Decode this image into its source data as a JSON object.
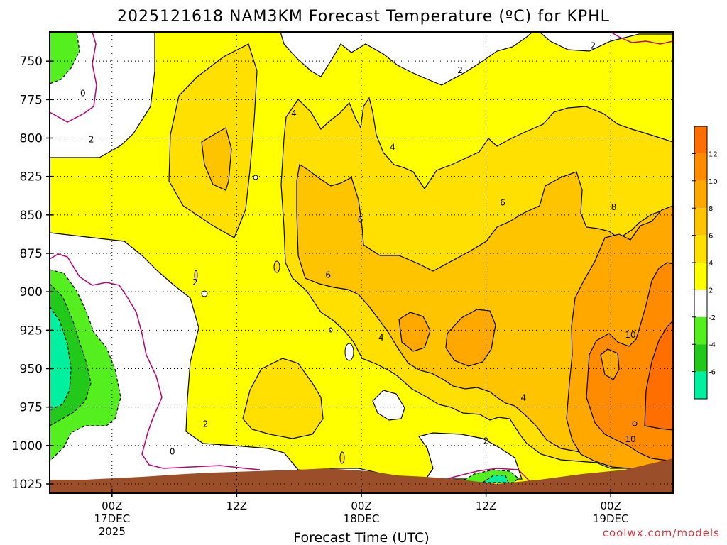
{
  "chart_data": {
    "type": "heatmap",
    "title": "2025121618 NAM3KM Forecast Temperature (ºC) for KPHL",
    "xlabel": "Forecast Time (UTC)",
    "ylabel": "",
    "credit": "coolwx.com/models",
    "y_levels": [
      750,
      775,
      800,
      825,
      850,
      875,
      900,
      925,
      950,
      975,
      1000,
      1025
    ],
    "y_tick_labels": [
      "750",
      "775",
      "800",
      "825",
      "850",
      "875",
      "900",
      "925",
      "950",
      "975",
      "1000",
      "1025"
    ],
    "ylim": [
      731,
      1031
    ],
    "x_range_hours": [
      -6,
      54
    ],
    "x_ticks": [
      {
        "hour": 0,
        "lines": [
          "00Z",
          "17DEC",
          "2025"
        ]
      },
      {
        "hour": 12,
        "lines": [
          "12Z"
        ]
      },
      {
        "hour": 24,
        "lines": [
          "00Z",
          "18DEC"
        ]
      },
      {
        "hour": 36,
        "lines": [
          "12Z"
        ]
      },
      {
        "hour": 48,
        "lines": [
          "00Z",
          "19DEC"
        ]
      }
    ],
    "colorbar": {
      "levels": [
        -8,
        -6,
        -4,
        -2,
        2,
        4,
        6,
        8,
        10,
        12,
        14
      ],
      "colors": [
        "#00f0a0",
        "#22c81a",
        "#55ee1e",
        "#ffffff",
        "#ffff00",
        "#ffe000",
        "#ffc400",
        "#ffa800",
        "#ff8c00",
        "#ff6e00"
      ],
      "tick_labels": [
        "-6",
        "-4",
        "-2",
        "2",
        "4",
        "6",
        "8",
        "10",
        "12"
      ]
    },
    "contour_labels": [
      {
        "text": "0",
        "hour": -2.8,
        "level": 771
      },
      {
        "text": "2",
        "hour": -2.0,
        "level": 801
      },
      {
        "text": "2",
        "hour": 8.0,
        "level": 894
      },
      {
        "text": "2",
        "hour": 9.0,
        "level": 986
      },
      {
        "text": "0",
        "hour": 5.8,
        "level": 1004
      },
      {
        "text": "4",
        "hour": 17.5,
        "level": 784
      },
      {
        "text": "4",
        "hour": 27.0,
        "level": 806
      },
      {
        "text": "2",
        "hour": 33.5,
        "level": 756
      },
      {
        "text": "2",
        "hour": 46.3,
        "level": 740
      },
      {
        "text": "6",
        "hour": 23.9,
        "level": 853
      },
      {
        "text": "6",
        "hour": 20.8,
        "level": 889
      },
      {
        "text": "6",
        "hour": 37.6,
        "level": 842
      },
      {
        "text": "4",
        "hour": 25.9,
        "level": 930
      },
      {
        "text": "4",
        "hour": 39.6,
        "level": 969
      },
      {
        "text": "2",
        "hour": 36.0,
        "level": 997
      },
      {
        "text": "8",
        "hour": 48.3,
        "level": 845
      },
      {
        "text": "10",
        "hour": 49.9,
        "level": 928
      },
      {
        "text": "10",
        "hour": 49.9,
        "level": 996
      }
    ]
  }
}
